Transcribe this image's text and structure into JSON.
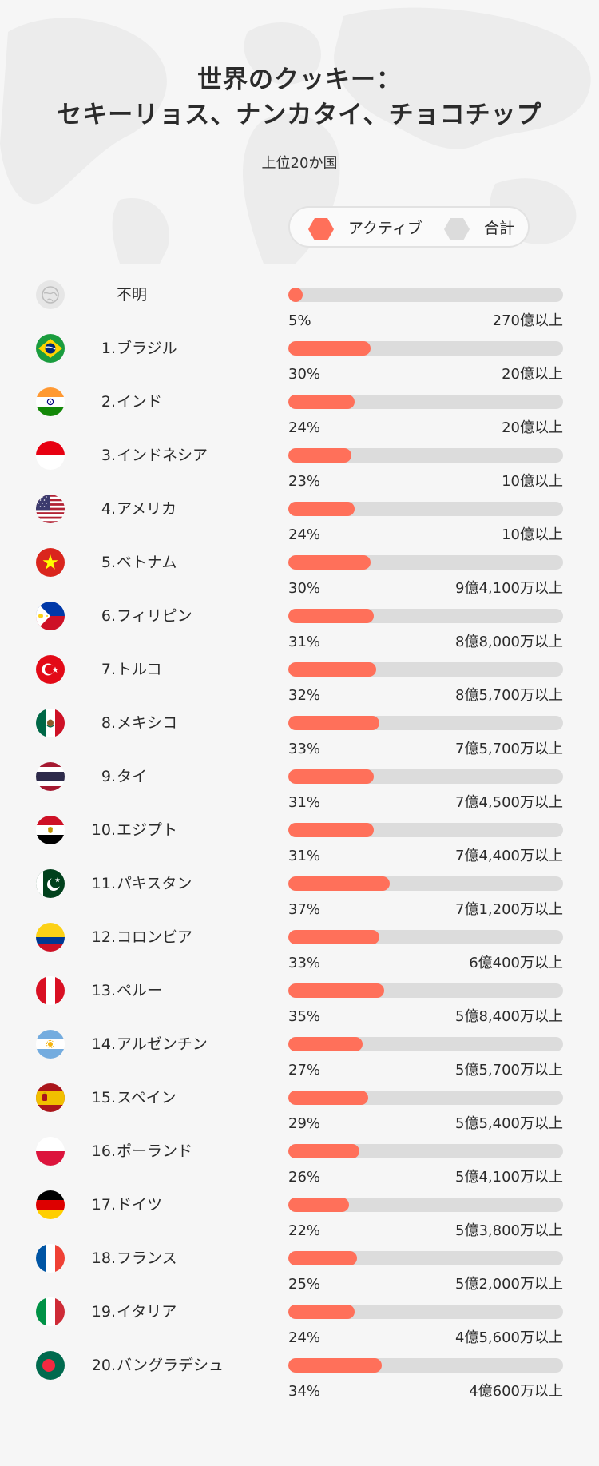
{
  "title_line1": "世界のクッキー：",
  "title_line2": "セキーリョス、ナンカタイ、チョコチップ",
  "subtitle": "上位20か国",
  "legend": {
    "active": "アクティブ",
    "total": "合計"
  },
  "colors": {
    "active": "#ff705a",
    "total": "#dcdcdc",
    "background": "#f6f6f6"
  },
  "chart_data": {
    "type": "bar",
    "title": "世界のクッキー：セキーリョス、ナンカタイ、チョコチップ",
    "subtitle": "上位20か国",
    "legend": [
      "アクティブ",
      "合計"
    ],
    "value_range": [
      0,
      100
    ],
    "rows": [
      {
        "rank": "",
        "country": "不明",
        "flag": "unknown-globe-icon",
        "active_pct": 5,
        "pct_label": "5%",
        "total_label": "270億以上"
      },
      {
        "rank": "1.",
        "country": "ブラジル",
        "flag": "brazil-flag-icon",
        "active_pct": 30,
        "pct_label": "30%",
        "total_label": "20億以上"
      },
      {
        "rank": "2.",
        "country": "インド",
        "flag": "india-flag-icon",
        "active_pct": 24,
        "pct_label": "24%",
        "total_label": "20億以上"
      },
      {
        "rank": "3.",
        "country": "インドネシア",
        "flag": "indonesia-flag-icon",
        "active_pct": 23,
        "pct_label": "23%",
        "total_label": "10億以上"
      },
      {
        "rank": "4.",
        "country": "アメリカ",
        "flag": "usa-flag-icon",
        "active_pct": 24,
        "pct_label": "24%",
        "total_label": "10億以上"
      },
      {
        "rank": "5.",
        "country": "ベトナム",
        "flag": "vietnam-flag-icon",
        "active_pct": 30,
        "pct_label": "30%",
        "total_label": "9億4,100万以上"
      },
      {
        "rank": "6.",
        "country": "フィリピン",
        "flag": "philippines-flag-icon",
        "active_pct": 31,
        "pct_label": "31%",
        "total_label": "8億8,000万以上"
      },
      {
        "rank": "7.",
        "country": "トルコ",
        "flag": "turkey-flag-icon",
        "active_pct": 32,
        "pct_label": "32%",
        "total_label": "8億5,700万以上"
      },
      {
        "rank": "8.",
        "country": "メキシコ",
        "flag": "mexico-flag-icon",
        "active_pct": 33,
        "pct_label": "33%",
        "total_label": "7億5,700万以上"
      },
      {
        "rank": "9.",
        "country": "タイ",
        "flag": "thailand-flag-icon",
        "active_pct": 31,
        "pct_label": "31%",
        "total_label": "7億4,500万以上"
      },
      {
        "rank": "10.",
        "country": "エジプト",
        "flag": "egypt-flag-icon",
        "active_pct": 31,
        "pct_label": "31%",
        "total_label": "7億4,400万以上"
      },
      {
        "rank": "11.",
        "country": "パキスタン",
        "flag": "pakistan-flag-icon",
        "active_pct": 37,
        "pct_label": "37%",
        "total_label": "7億1,200万以上"
      },
      {
        "rank": "12.",
        "country": "コロンビア",
        "flag": "colombia-flag-icon",
        "active_pct": 33,
        "pct_label": "33%",
        "total_label": "6億400万以上"
      },
      {
        "rank": "13.",
        "country": "ペルー",
        "flag": "peru-flag-icon",
        "active_pct": 35,
        "pct_label": "35%",
        "total_label": "5億8,400万以上"
      },
      {
        "rank": "14.",
        "country": "アルゼンチン",
        "flag": "argentina-flag-icon",
        "active_pct": 27,
        "pct_label": "27%",
        "total_label": "5億5,700万以上"
      },
      {
        "rank": "15.",
        "country": "スペイン",
        "flag": "spain-flag-icon",
        "active_pct": 29,
        "pct_label": "29%",
        "total_label": "5億5,400万以上"
      },
      {
        "rank": "16.",
        "country": "ポーランド",
        "flag": "poland-flag-icon",
        "active_pct": 26,
        "pct_label": "26%",
        "total_label": "5億4,100万以上"
      },
      {
        "rank": "17.",
        "country": "ドイツ",
        "flag": "germany-flag-icon",
        "active_pct": 22,
        "pct_label": "22%",
        "total_label": "5億3,800万以上"
      },
      {
        "rank": "18.",
        "country": "フランス",
        "flag": "france-flag-icon",
        "active_pct": 25,
        "pct_label": "25%",
        "total_label": "5億2,000万以上"
      },
      {
        "rank": "19.",
        "country": "イタリア",
        "flag": "italy-flag-icon",
        "active_pct": 24,
        "pct_label": "24%",
        "total_label": "4億5,600万以上"
      },
      {
        "rank": "20.",
        "country": "バングラデシュ",
        "flag": "bangladesh-flag-icon",
        "active_pct": 34,
        "pct_label": "34%",
        "total_label": "4億600万以上"
      }
    ]
  }
}
